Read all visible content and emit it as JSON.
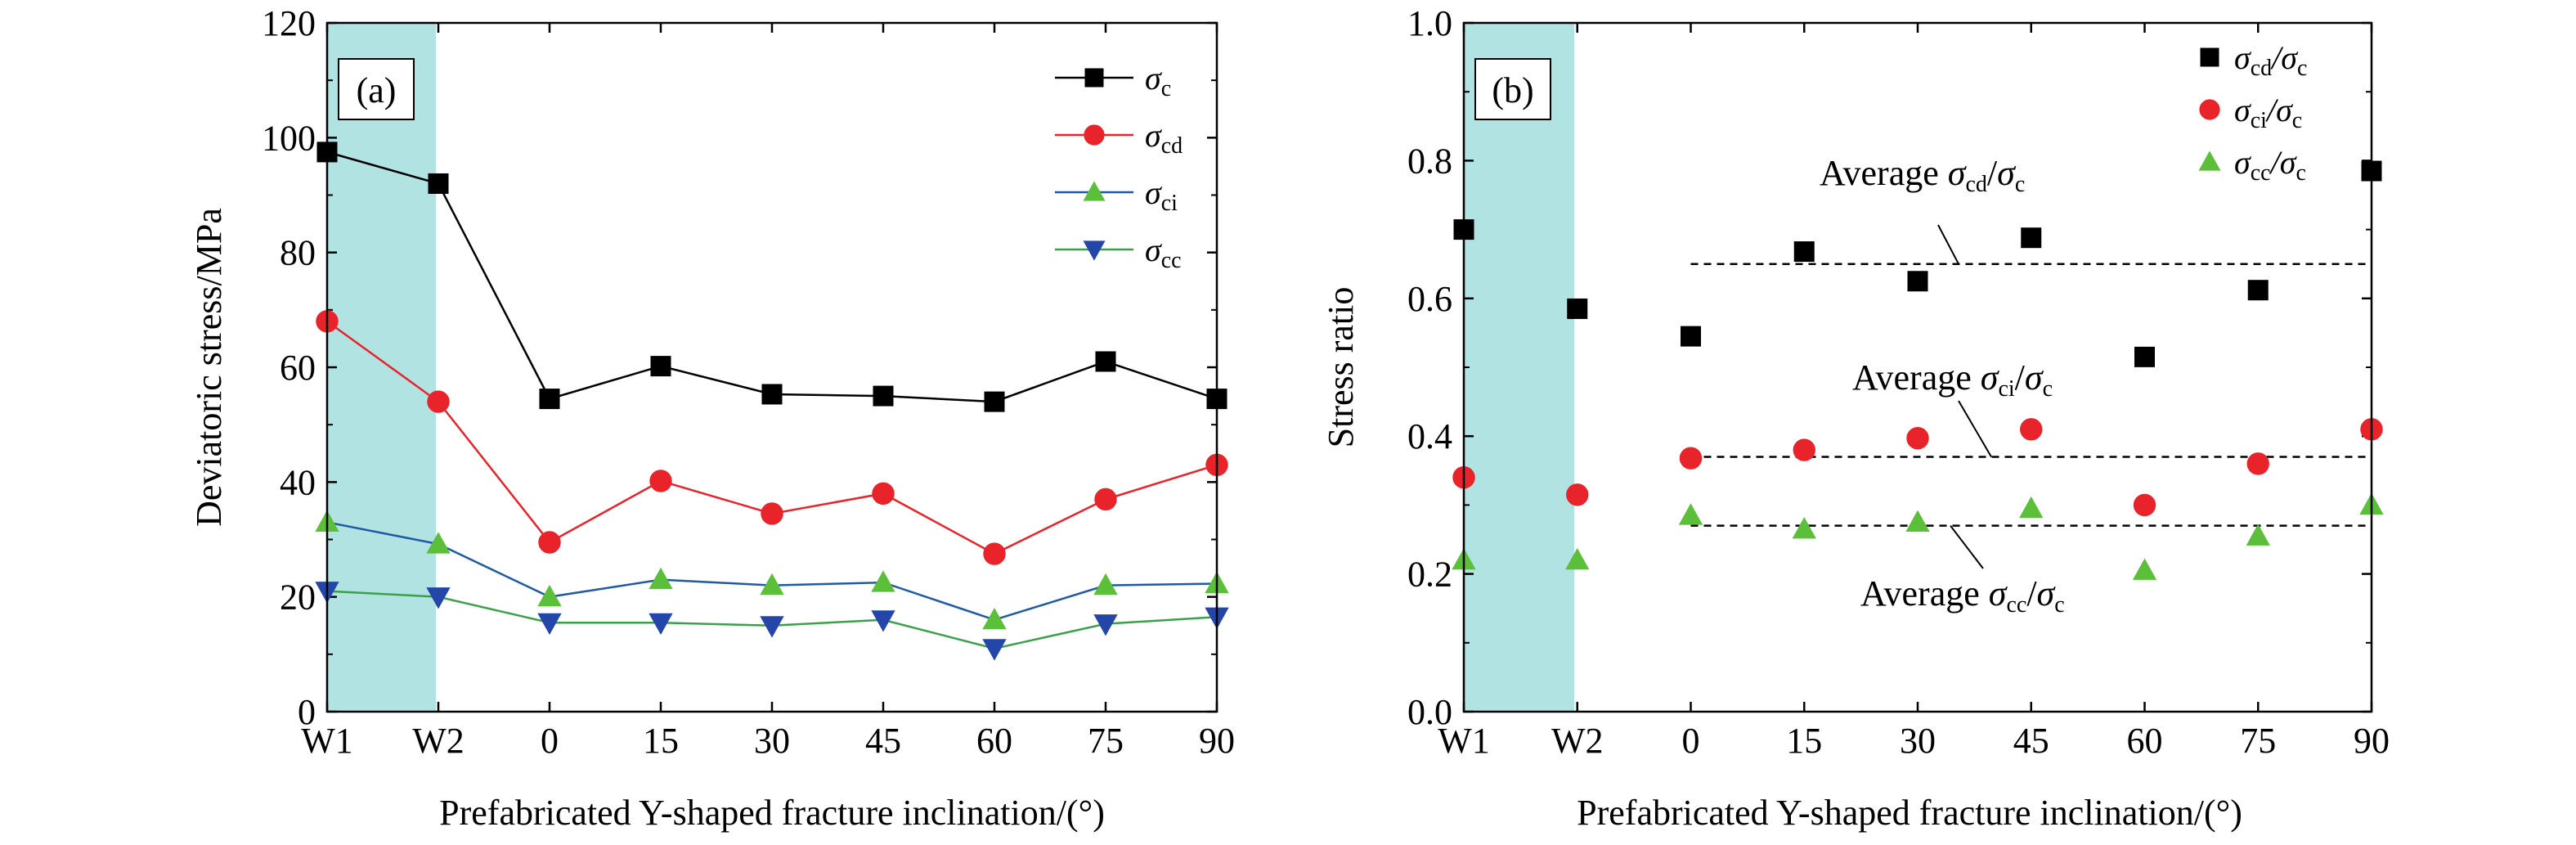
{
  "figure": {
    "xlabel": "Prefabricated Y-shaped fracture inclination/(°)",
    "categories": [
      "W1",
      "W2",
      "0",
      "15",
      "30",
      "45",
      "60",
      "75",
      "90"
    ],
    "shaded_categories": [
      "W1",
      "W2"
    ],
    "shade_color": "#b2e3e3"
  },
  "chart_data": [
    {
      "type": "line",
      "panel_label": "(a)",
      "ylabel": "Deviatoric stress/MPa",
      "ylim": [
        0,
        120
      ],
      "yticks": [
        "0",
        "20",
        "40",
        "60",
        "80",
        "100",
        "120"
      ],
      "legend_position": "top-right",
      "categories": [
        "W1",
        "W2",
        "0",
        "15",
        "30",
        "45",
        "60",
        "75",
        "90"
      ],
      "series": [
        {
          "name": "σc",
          "sym": "σ",
          "sub": "c",
          "color": "#000000",
          "marker": "square",
          "values": [
            97.5,
            92,
            54.5,
            60.2,
            55.3,
            55,
            54,
            61,
            54.5
          ]
        },
        {
          "name": "σcd",
          "sym": "σ",
          "sub": "cd",
          "color": "#e8232a",
          "marker": "circle",
          "values": [
            68,
            54,
            29.5,
            40.2,
            34.5,
            38,
            27.5,
            37,
            43
          ]
        },
        {
          "name": "σci",
          "sym": "σ",
          "sub": "ci",
          "color": "#1f5aa6",
          "marker": "triangle-up",
          "fill": "#5cbf3a",
          "values": [
            33,
            29.2,
            20,
            23,
            22,
            22.5,
            16,
            22,
            22.3
          ]
        },
        {
          "name": "σcc",
          "sym": "σ",
          "sub": "cc",
          "color": "#3aa14a",
          "marker": "triangle-down",
          "fill": "#2346a8",
          "values": [
            21,
            20,
            15.5,
            15.5,
            15,
            16,
            11,
            15.3,
            16.5
          ]
        }
      ]
    },
    {
      "type": "scatter",
      "panel_label": "(b)",
      "ylabel": "Stress ratio",
      "ylim": [
        0,
        1
      ],
      "yticks": [
        "0.0",
        "0.2",
        "0.4",
        "0.6",
        "0.8",
        "1.0"
      ],
      "legend_position": "top-right",
      "categories": [
        "W1",
        "W2",
        "0",
        "15",
        "30",
        "45",
        "60",
        "75",
        "90"
      ],
      "series": [
        {
          "name": "σcd/σc",
          "sym": "σ",
          "sub": "cd",
          "sym2": "σ",
          "sub2": "c",
          "color": "#000000",
          "marker": "square",
          "values": [
            0.7,
            0.585,
            0.545,
            0.668,
            0.625,
            0.688,
            0.515,
            0.612,
            0.785
          ]
        },
        {
          "name": "σci/σc",
          "sym": "σ",
          "sub": "ci",
          "sym2": "σ",
          "sub2": "c",
          "color": "#e8232a",
          "marker": "circle",
          "values": [
            0.34,
            0.315,
            0.368,
            0.38,
            0.397,
            0.41,
            0.3,
            0.36,
            0.41
          ]
        },
        {
          "name": "σcc/σc",
          "sym": "σ",
          "sub": "cc",
          "sym2": "σ",
          "sub2": "c",
          "color": "#5cbf3a",
          "marker": "triangle-up",
          "values": [
            0.22,
            0.22,
            0.285,
            0.265,
            0.275,
            0.295,
            0.205,
            0.255,
            0.3
          ]
        }
      ],
      "averages": [
        {
          "label_prefix": "Average ",
          "sub": "cd",
          "value": 0.65
        },
        {
          "label_prefix": "Average ",
          "sub": "ci",
          "value": 0.37
        },
        {
          "label_prefix": "Average ",
          "sub": "cc",
          "value": 0.27
        }
      ]
    }
  ]
}
